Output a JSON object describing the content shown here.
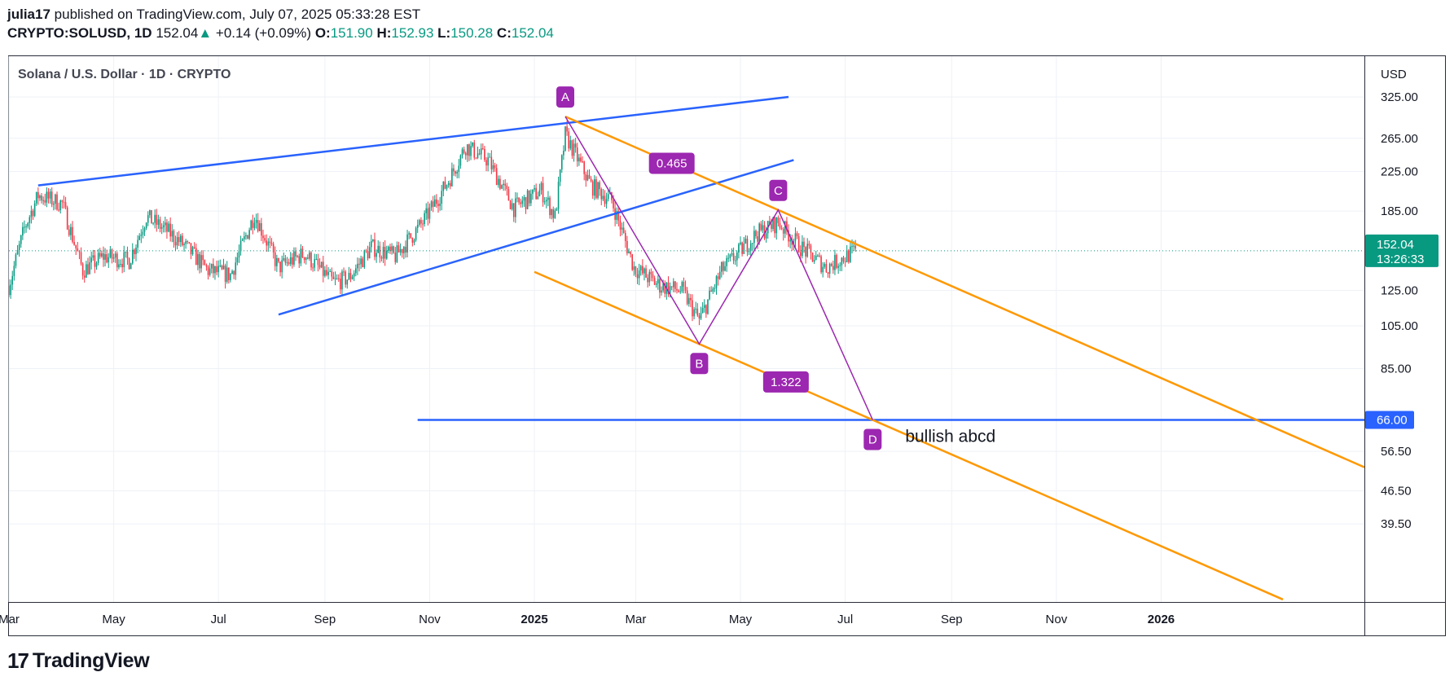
{
  "header": {
    "publisher_line": {
      "user": "julia17",
      "text": "published on TradingView.com, July 07, 2025 05:33:28 EST"
    },
    "symbol_line": {
      "symbol": "CRYPTO:SOLUSD, 1D",
      "last": "152.04",
      "change_arrow": "▲",
      "change": "+0.14 (+0.09%)",
      "open_label": "O:",
      "open": "151.90",
      "high_label": "H:",
      "high": "152.93",
      "low_label": "L:",
      "low": "150.28",
      "close_label": "C:",
      "close": "152.04"
    }
  },
  "footer": {
    "logo_mark": "17",
    "logo_text": "TradingView"
  },
  "colors": {
    "up": "#089981",
    "down": "#f23645",
    "trendline": "#2962ff",
    "fib_channel": "#ff9800",
    "pattern": "#9c27b0",
    "grid": "#eef1f6"
  },
  "chart_data": {
    "type": "candlestick",
    "title": "Solana / U.S. Dollar · 1D · CRYPTO",
    "currency_label": "USD",
    "y_scale": "log",
    "y_ticks": [
      "325.00",
      "265.00",
      "225.00",
      "185.00",
      "125.00",
      "105.00",
      "85.00",
      "56.50",
      "46.50",
      "39.50"
    ],
    "x_ticks": [
      "Mar",
      "May",
      "Jul",
      "Sep",
      "Nov",
      "2025",
      "Mar",
      "May",
      "Jul",
      "Sep",
      "Nov",
      "2026"
    ],
    "last_price": {
      "value": "152.04",
      "countdown": "13:26:33"
    },
    "level_line": {
      "value": "66.00"
    },
    "patterns": {
      "points": [
        {
          "label": "A",
          "date": "2025-01-19",
          "price": 295
        },
        {
          "label": "B",
          "date": "2025-04-07",
          "price": 96
        },
        {
          "label": "C",
          "date": "2025-05-23",
          "price": 186
        },
        {
          "label": "D",
          "date": "2025-07-17",
          "price": 66
        }
      ],
      "ratios": [
        "0.465",
        "1.322"
      ],
      "annotation": "bullish abcd"
    },
    "trendlines": [
      {
        "name": "upper",
        "from": [
          "2024-03-18",
          210
        ],
        "to": [
          "2025-05-29",
          325
        ]
      },
      {
        "name": "lower",
        "from": [
          "2024-08-05",
          111
        ],
        "to": [
          "2025-06-01",
          238
        ]
      }
    ],
    "ohlc_anchors": [
      [
        "2024-03-01",
        128
      ],
      [
        "2024-03-10",
        170
      ],
      [
        "2024-03-18",
        200
      ],
      [
        "2024-04-01",
        192
      ],
      [
        "2024-04-13",
        138
      ],
      [
        "2024-04-25",
        148
      ],
      [
        "2024-05-10",
        145
      ],
      [
        "2024-05-20",
        180
      ],
      [
        "2024-06-01",
        168
      ],
      [
        "2024-06-12",
        155
      ],
      [
        "2024-06-25",
        138
      ],
      [
        "2024-07-08",
        135
      ],
      [
        "2024-07-22",
        182
      ],
      [
        "2024-08-05",
        140
      ],
      [
        "2024-08-20",
        150
      ],
      [
        "2024-09-06",
        130
      ],
      [
        "2024-09-15",
        133
      ],
      [
        "2024-09-28",
        155
      ],
      [
        "2024-10-12",
        148
      ],
      [
        "2024-10-28",
        175
      ],
      [
        "2024-11-12",
        215
      ],
      [
        "2024-11-22",
        255
      ],
      [
        "2024-12-05",
        238
      ],
      [
        "2024-12-20",
        188
      ],
      [
        "2025-01-05",
        205
      ],
      [
        "2025-01-13",
        180
      ],
      [
        "2025-01-19",
        270
      ],
      [
        "2025-02-03",
        210
      ],
      [
        "2025-02-15",
        195
      ],
      [
        "2025-02-28",
        140
      ],
      [
        "2025-03-15",
        128
      ],
      [
        "2025-03-28",
        125
      ],
      [
        "2025-04-07",
        108
      ],
      [
        "2025-04-20",
        138
      ],
      [
        "2025-05-10",
        165
      ],
      [
        "2025-05-23",
        175
      ],
      [
        "2025-06-05",
        155
      ],
      [
        "2025-06-20",
        140
      ],
      [
        "2025-07-07",
        152
      ]
    ]
  }
}
